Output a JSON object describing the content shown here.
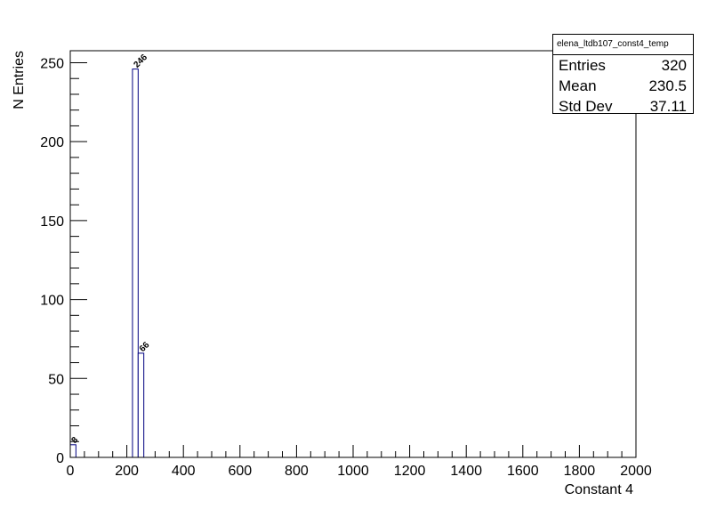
{
  "chart_data": {
    "type": "bar",
    "title": "",
    "xlabel": "Constant 4",
    "ylabel": "N Entries",
    "xlim": [
      0,
      2000
    ],
    "ylim": [
      0,
      257.6
    ],
    "x_tick_labels": [
      "0",
      "200",
      "400",
      "600",
      "800",
      "1000",
      "1200",
      "1400",
      "1600",
      "1800",
      "2000"
    ],
    "y_tick_labels": [
      "0",
      "50",
      "100",
      "150",
      "200",
      "250"
    ],
    "bin_width": 20,
    "bins": [
      {
        "x_low": 0,
        "x_high": 20,
        "value": 8,
        "label": "8"
      },
      {
        "x_low": 220,
        "x_high": 240,
        "value": 246,
        "label": "246"
      },
      {
        "x_low": 240,
        "x_high": 260,
        "value": 66,
        "label": "66"
      }
    ],
    "bar_color": "#000080",
    "grid": false
  },
  "stats_box": {
    "title": "elena_ltdb107_const4_temp",
    "rows": [
      {
        "label": "Entries",
        "value": "320"
      },
      {
        "label": "Mean",
        "value": "230.5"
      },
      {
        "label": "Std Dev",
        "value": "37.11"
      }
    ]
  }
}
